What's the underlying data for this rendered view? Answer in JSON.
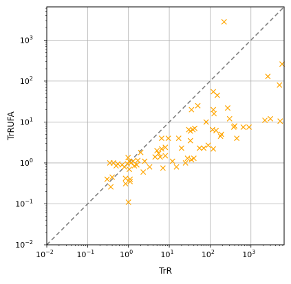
{
  "chart_data": {
    "type": "scatter",
    "title": "",
    "xlabel": "TrR",
    "ylabel": "TrRUFA",
    "xscale": "log",
    "yscale": "log",
    "xlim": [
      0.01,
      6500
    ],
    "ylim": [
      0.01,
      6500
    ],
    "grid": true,
    "legend": "none",
    "marker": "x",
    "marker_color": "#FFA500",
    "diagonal_color": "#808080",
    "xticks": [
      {
        "value": 0.01,
        "label": "10",
        "exp": "−2"
      },
      {
        "value": 0.1,
        "label": "10",
        "exp": "−1"
      },
      {
        "value": 1,
        "label": "10",
        "exp": "0"
      },
      {
        "value": 10,
        "label": "10",
        "exp": "1"
      },
      {
        "value": 100,
        "label": "10",
        "exp": "2"
      },
      {
        "value": 1000,
        "label": "10",
        "exp": "3"
      }
    ],
    "yticks": [
      {
        "value": 0.01,
        "label": "10",
        "exp": "−2"
      },
      {
        "value": 0.1,
        "label": "10",
        "exp": "−1"
      },
      {
        "value": 1,
        "label": "10",
        "exp": "0"
      },
      {
        "value": 10,
        "label": "10",
        "exp": "1"
      },
      {
        "value": 100,
        "label": "10",
        "exp": "2"
      },
      {
        "value": 1000,
        "label": "10",
        "exp": "3"
      }
    ],
    "series": [
      {
        "points": [
          [
            0.3,
            0.4
          ],
          [
            0.35,
            1.0
          ],
          [
            0.37,
            0.26
          ],
          [
            0.4,
            0.45
          ],
          [
            0.43,
            1.0
          ],
          [
            0.5,
            0.85
          ],
          [
            0.55,
            0.95
          ],
          [
            0.7,
            0.9
          ],
          [
            0.8,
            0.8
          ],
          [
            0.85,
            0.42
          ],
          [
            0.85,
            0.31
          ],
          [
            0.95,
            0.95
          ],
          [
            0.98,
            1.35
          ],
          [
            1.0,
            0.11
          ],
          [
            1.05,
            0.7
          ],
          [
            1.05,
            1.1
          ],
          [
            1.1,
            0.4
          ],
          [
            1.1,
            0.35
          ],
          [
            1.15,
            1.0
          ],
          [
            1.3,
            1.1
          ],
          [
            1.4,
            0.85
          ],
          [
            1.6,
            0.9
          ],
          [
            1.7,
            1.15
          ],
          [
            2.0,
            1.8
          ],
          [
            2.3,
            0.6
          ],
          [
            2.5,
            1.1
          ],
          [
            3.3,
            0.8
          ],
          [
            4.5,
            1.4
          ],
          [
            5.0,
            2.0
          ],
          [
            5.5,
            1.7
          ],
          [
            6.0,
            1.4
          ],
          [
            6.5,
            2.2
          ],
          [
            6.5,
            4.0
          ],
          [
            7.0,
            0.75
          ],
          [
            8.0,
            2.4
          ],
          [
            8.0,
            1.5
          ],
          [
            9.5,
            4.0
          ],
          [
            12.0,
            1.1
          ],
          [
            15.0,
            0.8
          ],
          [
            17.0,
            4.0
          ],
          [
            20.0,
            2.3
          ],
          [
            25.0,
            1.0
          ],
          [
            28.0,
            1.3
          ],
          [
            30.0,
            6.5
          ],
          [
            33.0,
            6.0
          ],
          [
            33.0,
            3.5
          ],
          [
            35.0,
            1.2
          ],
          [
            38.0,
            6.5
          ],
          [
            42.0,
            7.0
          ],
          [
            35.0,
            20.0
          ],
          [
            40.0,
            1.3
          ],
          [
            50.0,
            25.0
          ],
          [
            55.0,
            2.3
          ],
          [
            70.0,
            2.3
          ],
          [
            80.0,
            10.0
          ],
          [
            90.0,
            2.7
          ],
          [
            115.0,
            6.5
          ],
          [
            120.0,
            2.2
          ],
          [
            120.0,
            20.0
          ],
          [
            125.0,
            16.0
          ],
          [
            120.0,
            55.0
          ],
          [
            140.0,
            6.2
          ],
          [
            150.0,
            45.0
          ],
          [
            180.0,
            4.5
          ],
          [
            190.0,
            5.0
          ],
          [
            220.0,
            2800.0
          ],
          [
            270.0,
            22.0
          ],
          [
            300.0,
            12.0
          ],
          [
            380.0,
            7.5
          ],
          [
            400.0,
            8.0
          ],
          [
            450.0,
            4.0
          ],
          [
            650.0,
            7.5
          ],
          [
            900.0,
            7.5
          ],
          [
            2200.0,
            11.0
          ],
          [
            2600.0,
            130.0
          ],
          [
            3000.0,
            12.0
          ],
          [
            5000.0,
            80.0
          ],
          [
            5200.0,
            10.5
          ],
          [
            5800.0,
            260.0
          ]
        ]
      }
    ]
  }
}
